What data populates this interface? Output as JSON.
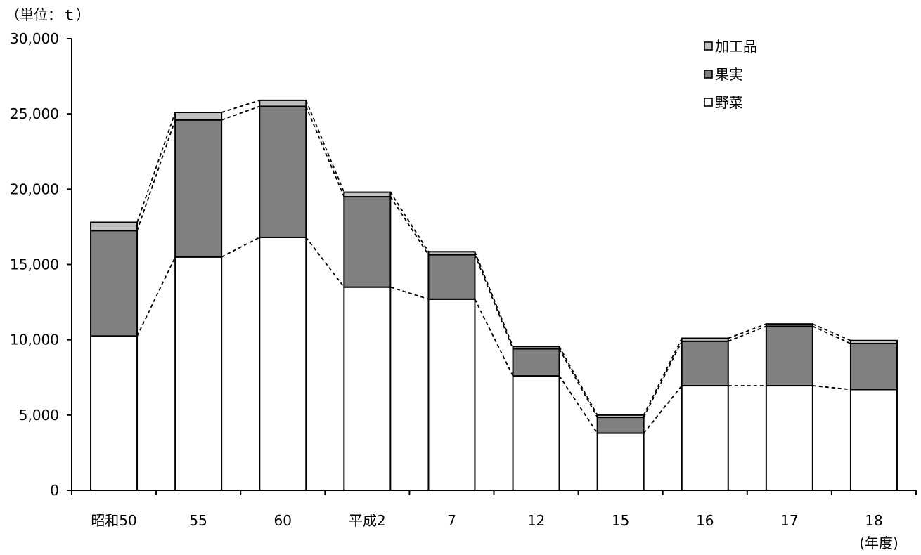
{
  "chart_data": {
    "type": "bar",
    "stacked": true,
    "unit_label": "（単位：ｔ）",
    "xunit_label": "(年度)",
    "categories": [
      "昭和50",
      "55",
      "60",
      "平成2",
      "7",
      "12",
      "15",
      "16",
      "17",
      "18"
    ],
    "series": [
      {
        "name": "野菜",
        "color": "#ffffff",
        "values": [
          10250,
          15500,
          16800,
          13500,
          12700,
          7600,
          3800,
          6950,
          6950,
          6700
        ]
      },
      {
        "name": "果実",
        "color": "#808080",
        "values": [
          7000,
          9100,
          8700,
          6000,
          2950,
          1800,
          1050,
          2950,
          3950,
          3050
        ]
      },
      {
        "name": "加工品",
        "color": "#c0c0c0",
        "values": [
          550,
          500,
          400,
          300,
          200,
          150,
          150,
          200,
          150,
          200
        ]
      }
    ],
    "legend_order": [
      "加工品",
      "果実",
      "野菜"
    ],
    "legend_position": "top-right",
    "ylim": [
      0,
      30000
    ],
    "yticks": [
      "0",
      "5,000",
      "10,000",
      "15,000",
      "20,000",
      "25,000",
      "30,000"
    ],
    "ytick_values": [
      0,
      5000,
      10000,
      15000,
      20000,
      25000,
      30000
    ],
    "connector_lines": "dashed",
    "grid": false
  }
}
